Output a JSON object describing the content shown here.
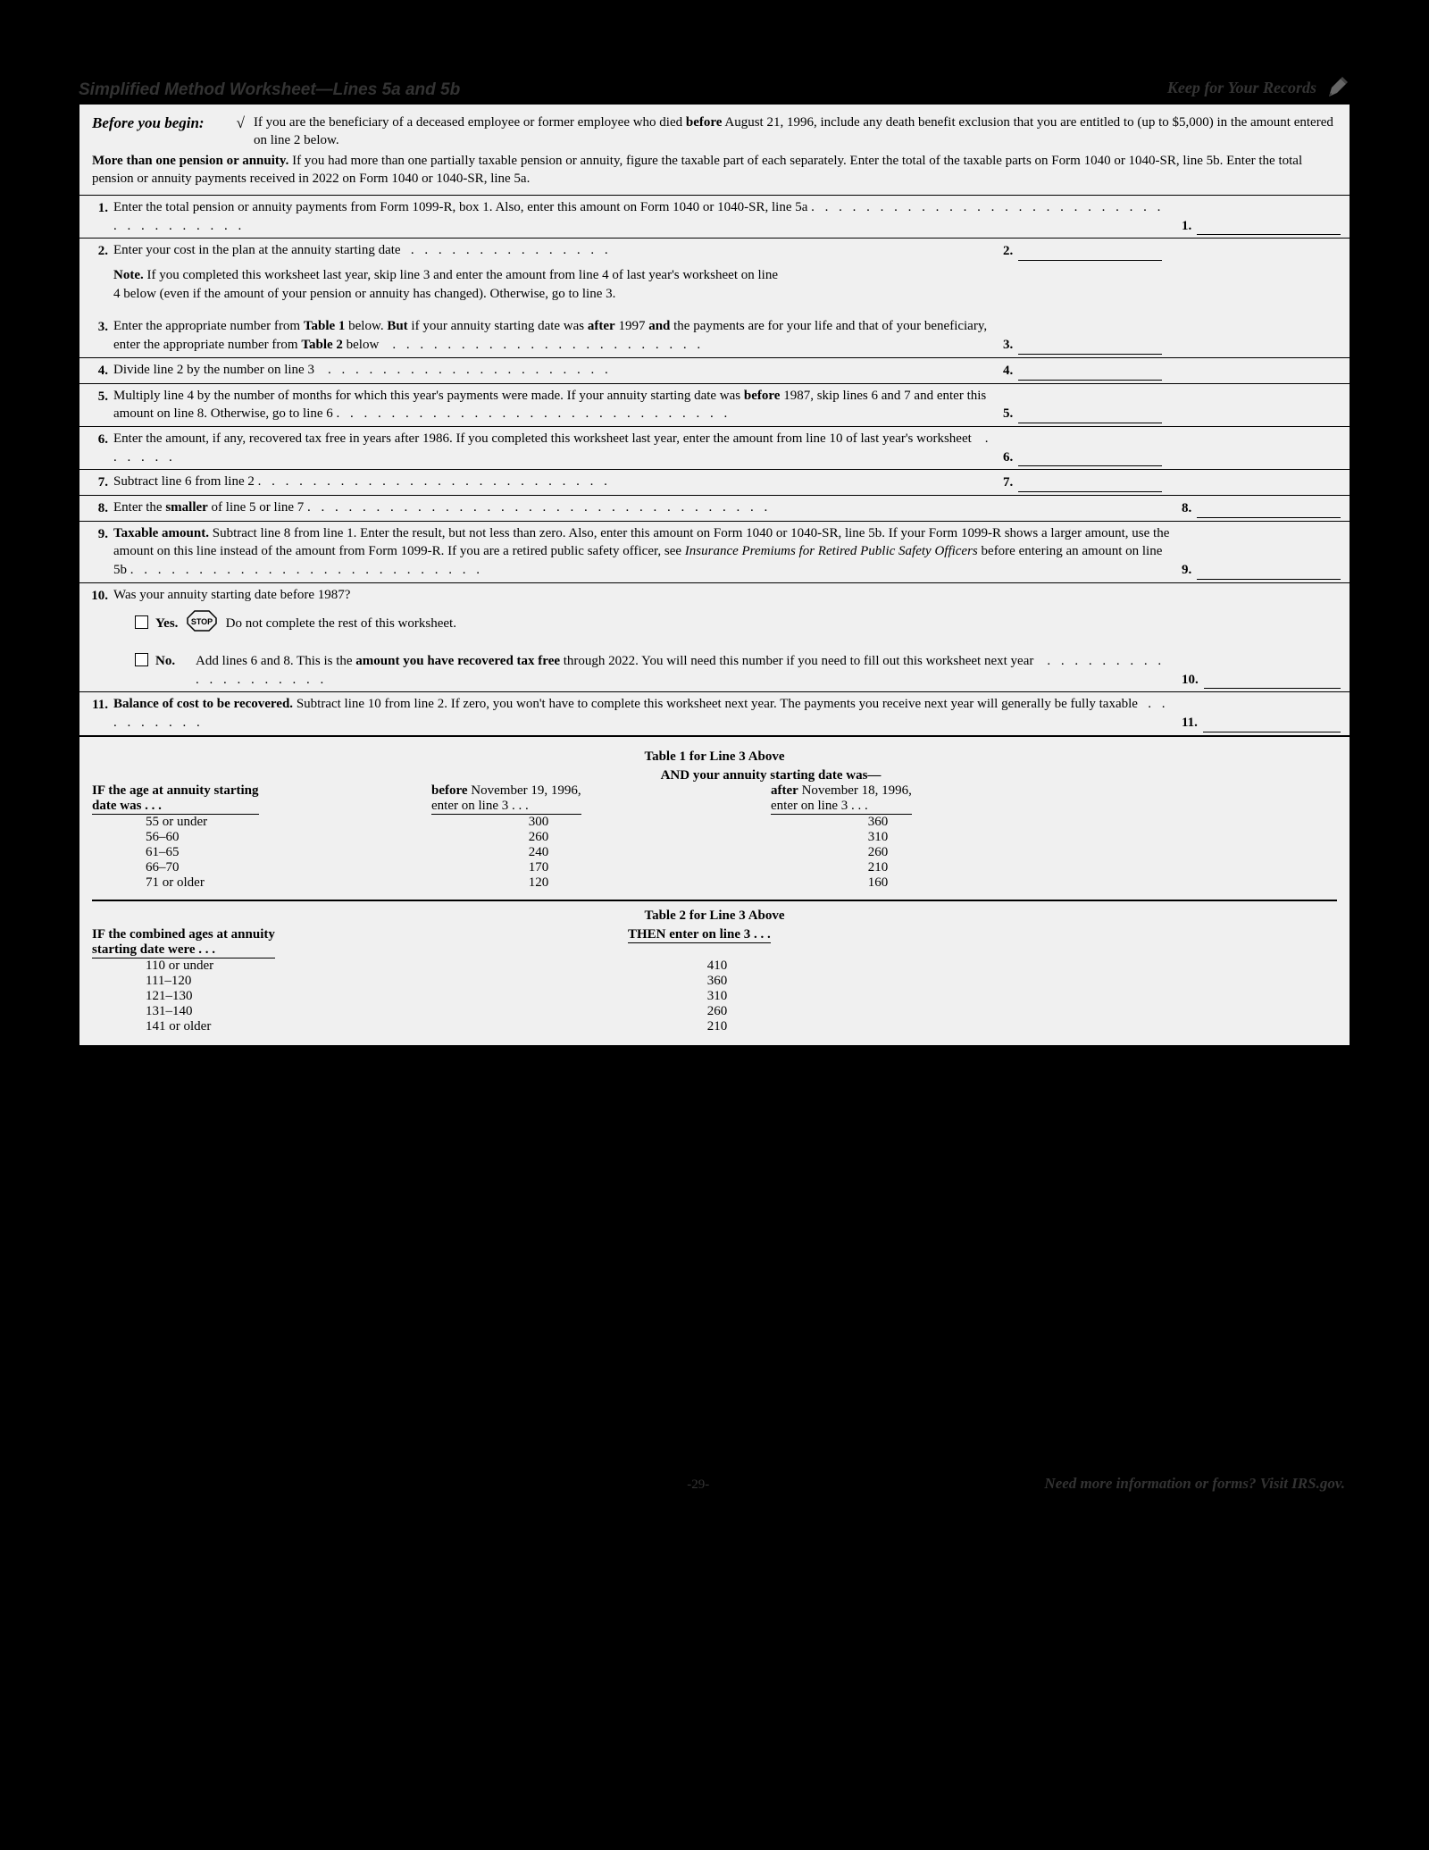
{
  "header": {
    "title": "Simplified Method Worksheet—Lines 5a and 5b",
    "keep": "Keep for Your Records"
  },
  "intro": {
    "before_label": "Before you begin:",
    "check_glyph": "√",
    "line1_html": "If you are the beneficiary of a deceased employee or former employee who died <b>before</b> August 21, 1996, include any death benefit exclusion that you are entitled to (up to $5,000) in the amount entered on line 2 below.",
    "line2_html": "<b>More than one pension or annuity.</b> If you had more than one partially taxable pension or annuity, figure the taxable part of each separately. Enter the total of the taxable parts on Form 1040 or 1040-SR, line 5b. Enter the total pension or annuity payments received in 2022 on Form 1040 or 1040-SR, line 5a."
  },
  "lines": [
    {
      "n": "1.",
      "html": "Enter the total pension or annuity payments from Form 1099-R, box 1. Also, enter this amount on Form 1040 or 1040-SR, line 5a <span class='dots'>. . . . . . . . . . . . . . . . . . . . . . . . . . . . . . . . . . . .</span>",
      "outnum": "1.",
      "outer": true,
      "bt": false
    },
    {
      "n": "2.",
      "html": "Enter your cost in the plan at the annuity starting date&nbsp;&nbsp;&nbsp;<span class='dots'>. . . . . . . . . . . . . . .</span>",
      "innum": "2.",
      "inner": true,
      "bt": true,
      "note_html": "<b>Note.</b> If you completed this worksheet last year, skip line 3 and enter the amount from line 4 of last year's worksheet on line 4 below (even if the amount of your pension or annuity has changed). Otherwise, go to line 3."
    },
    {
      "n": "3.",
      "html": "Enter the appropriate number from <b>Table 1</b> below. <b>But</b> if your annuity starting date was <b>after</b> 1997 <b>and</b> the payments are for your life and that of your beneficiary, enter the appropriate number from <b>Table 2</b> below&nbsp;&nbsp;&nbsp;&nbsp;<span class='dots'>. . . . . . . . . . . . . . . . . . . . . . .</span>",
      "innum": "3.",
      "inner": true,
      "bt": false,
      "gap": true
    },
    {
      "n": "4.",
      "html": "Divide line 2 by the number on line 3&nbsp;&nbsp;&nbsp;&nbsp;<span class='dots'>. . . . . . . . . . . . . . . . . . . . .</span>",
      "innum": "4.",
      "inner": true,
      "bt": true
    },
    {
      "n": "5.",
      "html": "Multiply line 4 by the number of months for which this year's payments were made. If your annuity starting date was <b>before</b> 1987, skip lines 6 and 7 and enter this amount on line 8. Otherwise, go to line 6 <span class='dots'>. . . . . . . . . . . . . . . . . . . . . . . . . . . . .</span>",
      "innum": "5.",
      "inner": true,
      "bt": true
    },
    {
      "n": "6.",
      "html": "Enter the amount, if any, recovered tax free in years after 1986. If you completed this worksheet last year, enter the amount from line 10 of last year's worksheet&nbsp;&nbsp;&nbsp;&nbsp;<span class='dots'>. . . . . .</span>",
      "innum": "6.",
      "inner": true,
      "bt": true
    },
    {
      "n": "7.",
      "html": "Subtract line 6 from line 2 <span class='dots'>. . . . . . . . . . . . . . . . . . . . . . . . . .</span>",
      "innum": "7.",
      "inner": true,
      "bt": true
    },
    {
      "n": "8.",
      "html": "Enter the <b>smaller</b> of line 5 or line 7 <span class='dots'>. . . . . . . . . . . . . . . . . . . . . . . . . . . . . . . . . .</span>",
      "outnum": "8.",
      "outer": true,
      "bt": true
    },
    {
      "n": "9.",
      "html": "<b>Taxable amount.</b> Subtract line 8 from line 1. Enter the result, but not less than zero. Also, enter this amount on Form 1040 or 1040-SR, line 5b. If your Form 1099-R shows a larger amount, use the amount on this line instead of the amount from Form 1099-R. If you are a retired public safety officer, see <i>Insurance Premiums for Retired Public Safety Officers</i> before entering an amount on line 5b <span class='dots'>. . . . . . . . . . . . . . . . . . . . . . . . . .</span>",
      "outnum": "9.",
      "outer": true,
      "bt": true
    },
    {
      "n": "10.",
      "html": "Was your annuity starting date before 1987?",
      "bt": true,
      "q10": true,
      "yes_label": "Yes.",
      "yes_text": "Do not complete the rest of this worksheet.",
      "no_label": "No.",
      "no_html": "Add lines 6 and 8. This is the <b>amount you have recovered tax free</b> through 2022. You will need this number if you need to fill out this worksheet next year&nbsp;&nbsp;&nbsp;&nbsp;<span class='dots'>. . . . . . . . . . . . . . . . . . .</span>",
      "outnum": "10."
    },
    {
      "n": "11.",
      "html": "<b>Balance of cost to be recovered.</b> Subtract line 10 from line 2. If zero, you won't have to complete this worksheet next year. The payments you receive next year will generally be fully taxable&nbsp;&nbsp;&nbsp;<span class='dots'>. . . . . . . . .</span>",
      "outnum": "11.",
      "outer": true,
      "bt": true
    }
  ],
  "table1": {
    "title": "Table 1 for Line 3 Above",
    "super_header": "AND your annuity starting date was—",
    "col1_header_html": "IF the age at annuity starting<br>date was . . .",
    "col2_header_html": "<b>before</b> November 19, 1996,<br>enter on line 3 . . .",
    "col3_header_html": "<b>after</b> November 18, 1996,<br>enter on line 3 . . .",
    "rows": [
      {
        "age": "55 or under",
        "b": "300",
        "a": "360"
      },
      {
        "age": "56–60",
        "b": "260",
        "a": "310"
      },
      {
        "age": "61–65",
        "b": "240",
        "a": "260"
      },
      {
        "age": "66–70",
        "b": "170",
        "a": "210"
      },
      {
        "age": "71 or older",
        "b": "120",
        "a": "160"
      }
    ]
  },
  "table2": {
    "title": "Table 2 for Line 3 Above",
    "col1_header_html": "IF the combined ages at annuity<br>starting date were . . .",
    "col2_header": "THEN enter on line 3 . . .",
    "rows": [
      {
        "age": "110 or under",
        "v": "410"
      },
      {
        "age": "111–120",
        "v": "360"
      },
      {
        "age": "121–130",
        "v": "310"
      },
      {
        "age": "131–140",
        "v": "260"
      },
      {
        "age": "141 or older",
        "v": "210"
      }
    ]
  },
  "footer": {
    "page": "-29-",
    "info": "Need more information or forms? Visit IRS.gov."
  },
  "stop_label": "STOP"
}
